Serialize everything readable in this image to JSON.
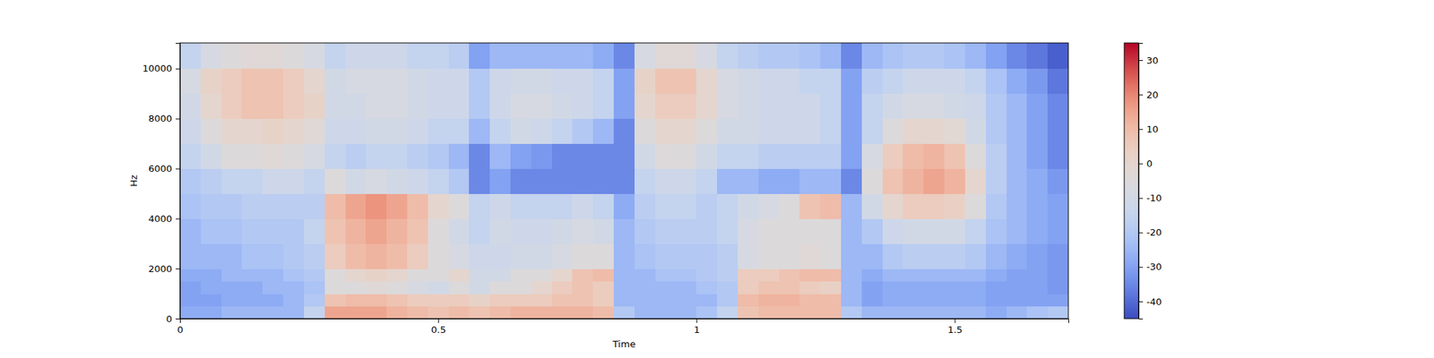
{
  "chart_data": {
    "type": "heatmap",
    "x_label": "Time",
    "y_label": "Hz",
    "xlim": [
      0,
      1.72
    ],
    "xticks": [
      0,
      0.5,
      1,
      1.5
    ],
    "ylim": [
      0,
      11025
    ],
    "yticks": [
      0,
      2000,
      4000,
      6000,
      8000,
      10000
    ],
    "x_edges": [
      0,
      0.04,
      0.08,
      0.12,
      0.16,
      0.2,
      0.24,
      0.28,
      0.32,
      0.36,
      0.4,
      0.44,
      0.48,
      0.52,
      0.56,
      0.6,
      0.64,
      0.68,
      0.72,
      0.76,
      0.8,
      0.84,
      0.88,
      0.92,
      0.96,
      1.0,
      1.04,
      1.08,
      1.12,
      1.16,
      1.2,
      1.24,
      1.28,
      1.32,
      1.36,
      1.4,
      1.44,
      1.48,
      1.52,
      1.56,
      1.6,
      1.64,
      1.68,
      1.72
    ],
    "y_edges": [
      0,
      500,
      1000,
      1500,
      2000,
      3000,
      4000,
      5000,
      6000,
      7000,
      8000,
      9000,
      10000,
      11025
    ],
    "cells": [
      [
        -28,
        -30,
        -30,
        -28,
        -25,
        -25,
        -22,
        -20,
        -15,
        -12,
        -10,
        -8,
        -15
      ],
      [
        -28,
        -30,
        -28,
        -28,
        -25,
        -22,
        -20,
        -18,
        -10,
        -5,
        0,
        2,
        -8
      ],
      [
        -25,
        -28,
        -28,
        -25,
        -25,
        -22,
        -20,
        -15,
        -5,
        0,
        5,
        5,
        -5
      ],
      [
        -25,
        -28,
        -28,
        -25,
        -22,
        -20,
        -18,
        -15,
        -5,
        0,
        8,
        8,
        -3
      ],
      [
        -25,
        -28,
        -25,
        -25,
        -22,
        -20,
        -18,
        -12,
        -3,
        2,
        8,
        8,
        -3
      ],
      [
        -25,
        -25,
        -25,
        -22,
        -20,
        -20,
        -18,
        -12,
        -5,
        0,
        5,
        5,
        -5
      ],
      [
        -15,
        -20,
        -22,
        -20,
        -18,
        -15,
        -18,
        -15,
        -8,
        -3,
        2,
        0,
        -8
      ],
      [
        15,
        8,
        -5,
        -5,
        5,
        8,
        10,
        -5,
        -15,
        -12,
        -10,
        -10,
        -15
      ],
      [
        15,
        10,
        -5,
        0,
        10,
        12,
        15,
        -10,
        -18,
        -12,
        -10,
        -8,
        -12
      ],
      [
        15,
        10,
        -3,
        2,
        12,
        15,
        18,
        -8,
        -15,
        -10,
        -8,
        -8,
        -12
      ],
      [
        12,
        8,
        -5,
        0,
        10,
        12,
        15,
        -10,
        -15,
        -10,
        -8,
        -8,
        -12
      ],
      [
        10,
        5,
        -8,
        -5,
        5,
        8,
        10,
        -12,
        -18,
        -12,
        -10,
        -10,
        -15
      ],
      [
        8,
        5,
        -10,
        -5,
        -5,
        -5,
        0,
        -15,
        -20,
        -15,
        -12,
        -12,
        -15
      ],
      [
        10,
        5,
        -5,
        0,
        -8,
        -10,
        -5,
        -20,
        -25,
        -15,
        -12,
        -12,
        -18
      ],
      [
        8,
        2,
        -10,
        -10,
        -12,
        -15,
        -15,
        -35,
        -35,
        -25,
        -20,
        -20,
        -30
      ],
      [
        10,
        5,
        -5,
        -10,
        -12,
        -10,
        -12,
        -30,
        -25,
        -15,
        -12,
        -12,
        -25
      ],
      [
        12,
        5,
        -5,
        -5,
        -10,
        -12,
        -15,
        -35,
        -30,
        -10,
        -8,
        -10,
        -25
      ],
      [
        12,
        5,
        0,
        -5,
        -10,
        -12,
        -15,
        -35,
        -32,
        -12,
        -8,
        -10,
        -25
      ],
      [
        12,
        8,
        5,
        0,
        -8,
        -10,
        -15,
        -35,
        -35,
        -15,
        -10,
        -12,
        -25
      ],
      [
        12,
        8,
        8,
        8,
        -5,
        -8,
        -12,
        -35,
        -35,
        -20,
        -12,
        -12,
        -25
      ],
      [
        10,
        5,
        5,
        10,
        -5,
        -10,
        -15,
        -35,
        -35,
        -25,
        -15,
        -15,
        -28
      ],
      [
        -20,
        -25,
        -25,
        -25,
        -25,
        -25,
        -28,
        -35,
        -35,
        -35,
        -30,
        -30,
        -35
      ],
      [
        -25,
        -25,
        -25,
        -25,
        -22,
        -20,
        -18,
        -15,
        -10,
        -5,
        0,
        2,
        -8
      ],
      [
        -25,
        -25,
        -25,
        -22,
        -20,
        -18,
        -15,
        -12,
        -5,
        0,
        5,
        8,
        -3
      ],
      [
        -25,
        -25,
        -25,
        -22,
        -20,
        -18,
        -15,
        -12,
        -5,
        0,
        5,
        8,
        -3
      ],
      [
        -22,
        -25,
        -22,
        -20,
        -20,
        -18,
        -18,
        -15,
        -10,
        -5,
        0,
        0,
        -8
      ],
      [
        -15,
        -20,
        -20,
        -18,
        -18,
        -15,
        -15,
        -25,
        -15,
        -10,
        -8,
        -8,
        -15
      ],
      [
        8,
        10,
        5,
        5,
        -8,
        -8,
        -10,
        -25,
        -15,
        -10,
        -10,
        -10,
        -18
      ],
      [
        10,
        12,
        8,
        5,
        -5,
        -5,
        -8,
        -28,
        -18,
        -12,
        -12,
        -12,
        -20
      ],
      [
        10,
        12,
        8,
        8,
        -5,
        -5,
        -5,
        -28,
        -18,
        -12,
        -12,
        -12,
        -20
      ],
      [
        10,
        10,
        5,
        10,
        -3,
        -5,
        8,
        -25,
        -18,
        -12,
        -12,
        -15,
        -22
      ],
      [
        10,
        10,
        3,
        10,
        -5,
        -5,
        10,
        -25,
        -18,
        -15,
        -15,
        -15,
        -25
      ],
      [
        -20,
        -25,
        -25,
        -25,
        -25,
        -25,
        -25,
        -35,
        -30,
        -30,
        -30,
        -30,
        -35
      ],
      [
        -25,
        -30,
        -30,
        -28,
        -25,
        -20,
        -10,
        -5,
        -8,
        -15,
        -15,
        -18,
        -25
      ],
      [
        -25,
        -28,
        -28,
        -25,
        -20,
        -12,
        0,
        8,
        5,
        -5,
        -10,
        -15,
        -22
      ],
      [
        -25,
        -28,
        -28,
        -25,
        -18,
        -10,
        5,
        12,
        10,
        0,
        -8,
        -12,
        -20
      ],
      [
        -25,
        -28,
        -28,
        -25,
        -18,
        -10,
        5,
        15,
        12,
        0,
        -8,
        -12,
        -20
      ],
      [
        -25,
        -28,
        -28,
        -25,
        -18,
        -10,
        3,
        12,
        8,
        -2,
        -10,
        -12,
        -22
      ],
      [
        -25,
        -28,
        -28,
        -25,
        -20,
        -15,
        -5,
        0,
        -5,
        -10,
        -12,
        -15,
        -25
      ],
      [
        -28,
        -30,
        -30,
        -28,
        -25,
        -22,
        -20,
        -18,
        -18,
        -20,
        -20,
        -22,
        -30
      ],
      [
        -25,
        -30,
        -30,
        -30,
        -28,
        -25,
        -25,
        -25,
        -25,
        -25,
        -25,
        -28,
        -35
      ],
      [
        -22,
        -30,
        -30,
        -30,
        -30,
        -28,
        -28,
        -28,
        -30,
        -30,
        -30,
        -32,
        -38
      ],
      [
        -20,
        -30,
        -32,
        -32,
        -32,
        -30,
        -30,
        -32,
        -35,
        -35,
        -35,
        -38,
        -42
      ]
    ],
    "color_range": [
      -45,
      35
    ],
    "color_ticks": [
      -40,
      -30,
      -20,
      -10,
      0,
      10,
      20,
      30
    ]
  }
}
